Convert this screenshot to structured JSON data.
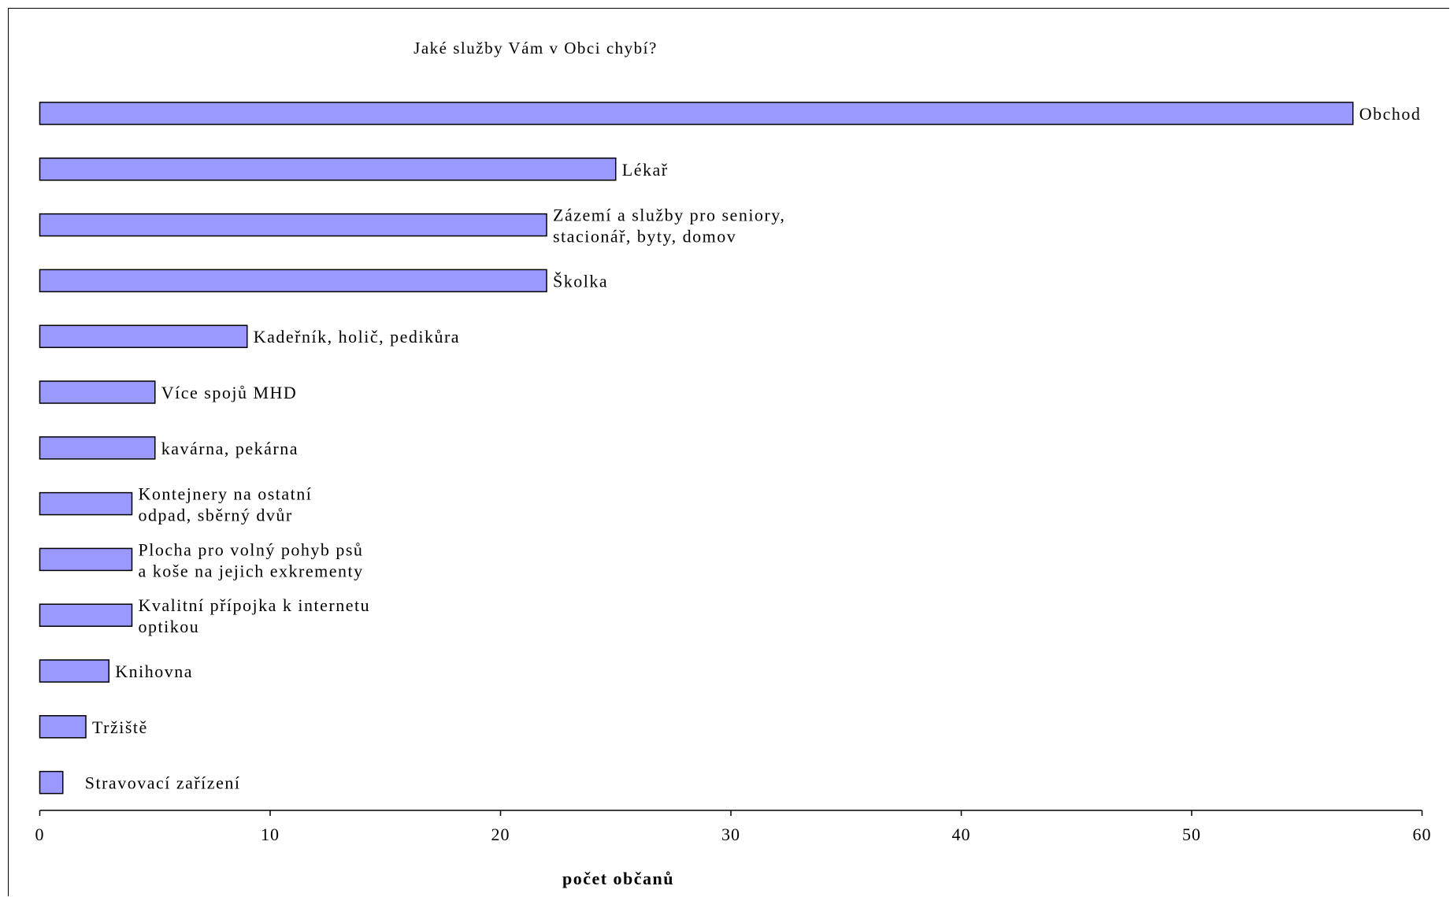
{
  "chart_data": {
    "type": "bar",
    "orientation": "horizontal",
    "title": "Jaké služby Vám v Obci chybí?",
    "xlabel": "počet občanů",
    "ylabel": "",
    "xlim": [
      0,
      60
    ],
    "ticks": [
      "0",
      "10",
      "20",
      "30",
      "40",
      "50",
      "60"
    ],
    "tick_values": [
      0,
      10,
      20,
      30,
      40,
      50,
      60
    ],
    "bar_color": "#9999FF",
    "bar_outline": "#000000",
    "grid": false,
    "legend": "none",
    "categories": [
      [
        "Obchod"
      ],
      [
        "Lékař"
      ],
      [
        "Zázemí a služby pro seniory,",
        "stacionář, byty, domov"
      ],
      [
        "Školka"
      ],
      [
        "Kadeřník, holič, pedikůra"
      ],
      [
        "Více spojů MHD"
      ],
      [
        "kavárna, pekárna"
      ],
      [
        "Kontejnery na ostatní",
        "odpad, sběrný dvůr"
      ],
      [
        "Plocha pro volný pohyb psů",
        "a koše na jejich exkrementy"
      ],
      [
        "Kvalitní přípojka k internetu",
        "optikou"
      ],
      [
        "Knihovna"
      ],
      [
        "Tržiště"
      ],
      [
        "Stravovací zařízení"
      ]
    ],
    "values": [
      57,
      25,
      22,
      22,
      9,
      5,
      5,
      4,
      4,
      4,
      3,
      2,
      1
    ]
  }
}
